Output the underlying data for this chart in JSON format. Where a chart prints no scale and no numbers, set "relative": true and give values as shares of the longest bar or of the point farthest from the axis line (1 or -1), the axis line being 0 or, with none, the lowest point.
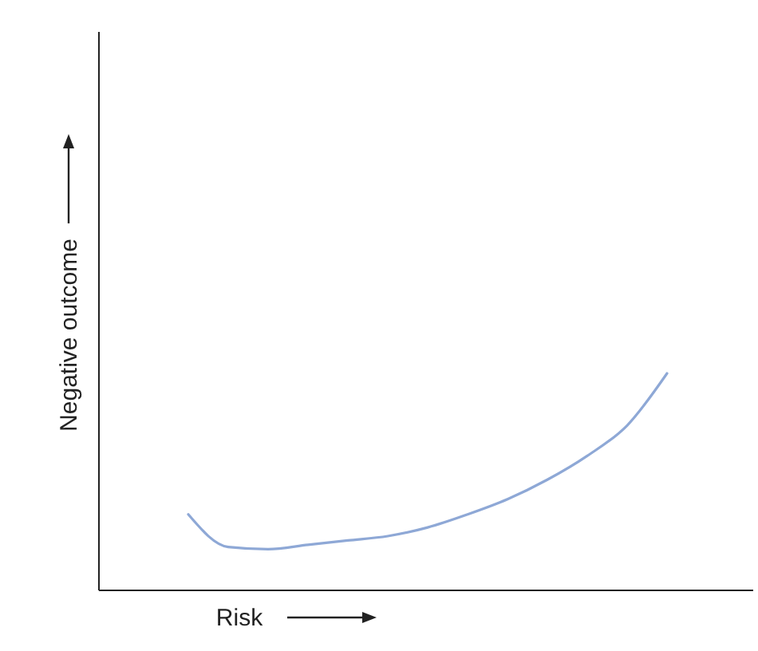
{
  "chart_data": {
    "type": "line",
    "relative": true,
    "xlabel": "Risk",
    "ylabel": "Negative outcome",
    "categories": [
      null,
      null,
      null,
      null,
      null,
      null,
      null,
      null,
      null,
      null,
      null,
      null,
      null
    ],
    "series": [
      {
        "color": "#8ea8d6",
        "values": [
          0.35,
          0.2,
          0.19,
          0.21,
          0.23,
          0.25,
          0.29,
          0.35,
          0.42,
          0.51,
          0.62,
          0.76,
          1
        ]
      }
    ],
    "marker": "none",
    "line_style": "solid"
  }
}
